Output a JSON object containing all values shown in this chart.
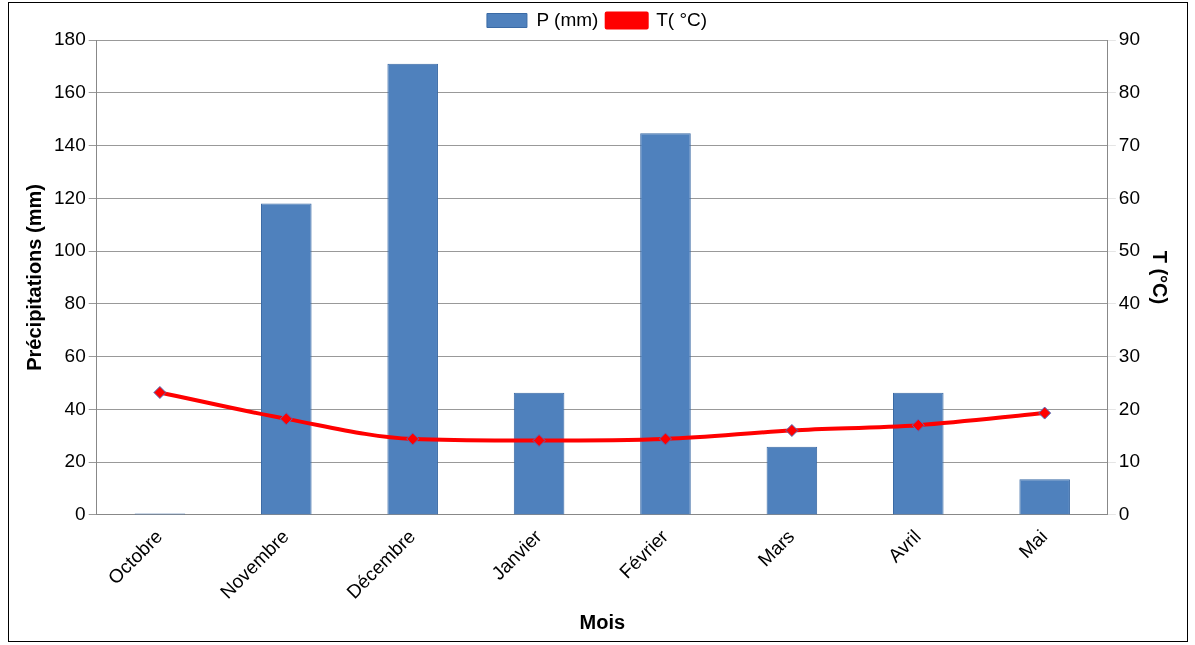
{
  "chart_data": {
    "type": "bar",
    "xlabel": "Mois",
    "ylabel": "Précipitations (mm)",
    "y2label": "T (°C)",
    "categories": [
      "Octobre",
      "Novembre",
      "Décembre",
      "Janvier",
      "Février",
      "Mars",
      "Avril",
      "Mai"
    ],
    "series": [
      {
        "name": "P (mm)",
        "color": "#4f81bd",
        "values": [
          0.5,
          118,
          171,
          46.3,
          144.7,
          25.8,
          46.3,
          13.5
        ]
      },
      {
        "name": "T( °C)",
        "type": "line",
        "axis": "y2",
        "color": "#ff0000",
        "marker": "diamond",
        "values": [
          23.2,
          18.2,
          14.4,
          14.1,
          14.4,
          16.0,
          17.0,
          19.3
        ]
      }
    ],
    "ylim": [
      0,
      180
    ],
    "yticks": [
      0,
      20,
      40,
      60,
      80,
      100,
      120,
      140,
      160,
      180
    ],
    "y2lim": [
      0,
      90
    ],
    "y2ticks": [
      0,
      10,
      20,
      30,
      40,
      50,
      60,
      70,
      80,
      90
    ],
    "grid": "y",
    "legend": "top"
  }
}
